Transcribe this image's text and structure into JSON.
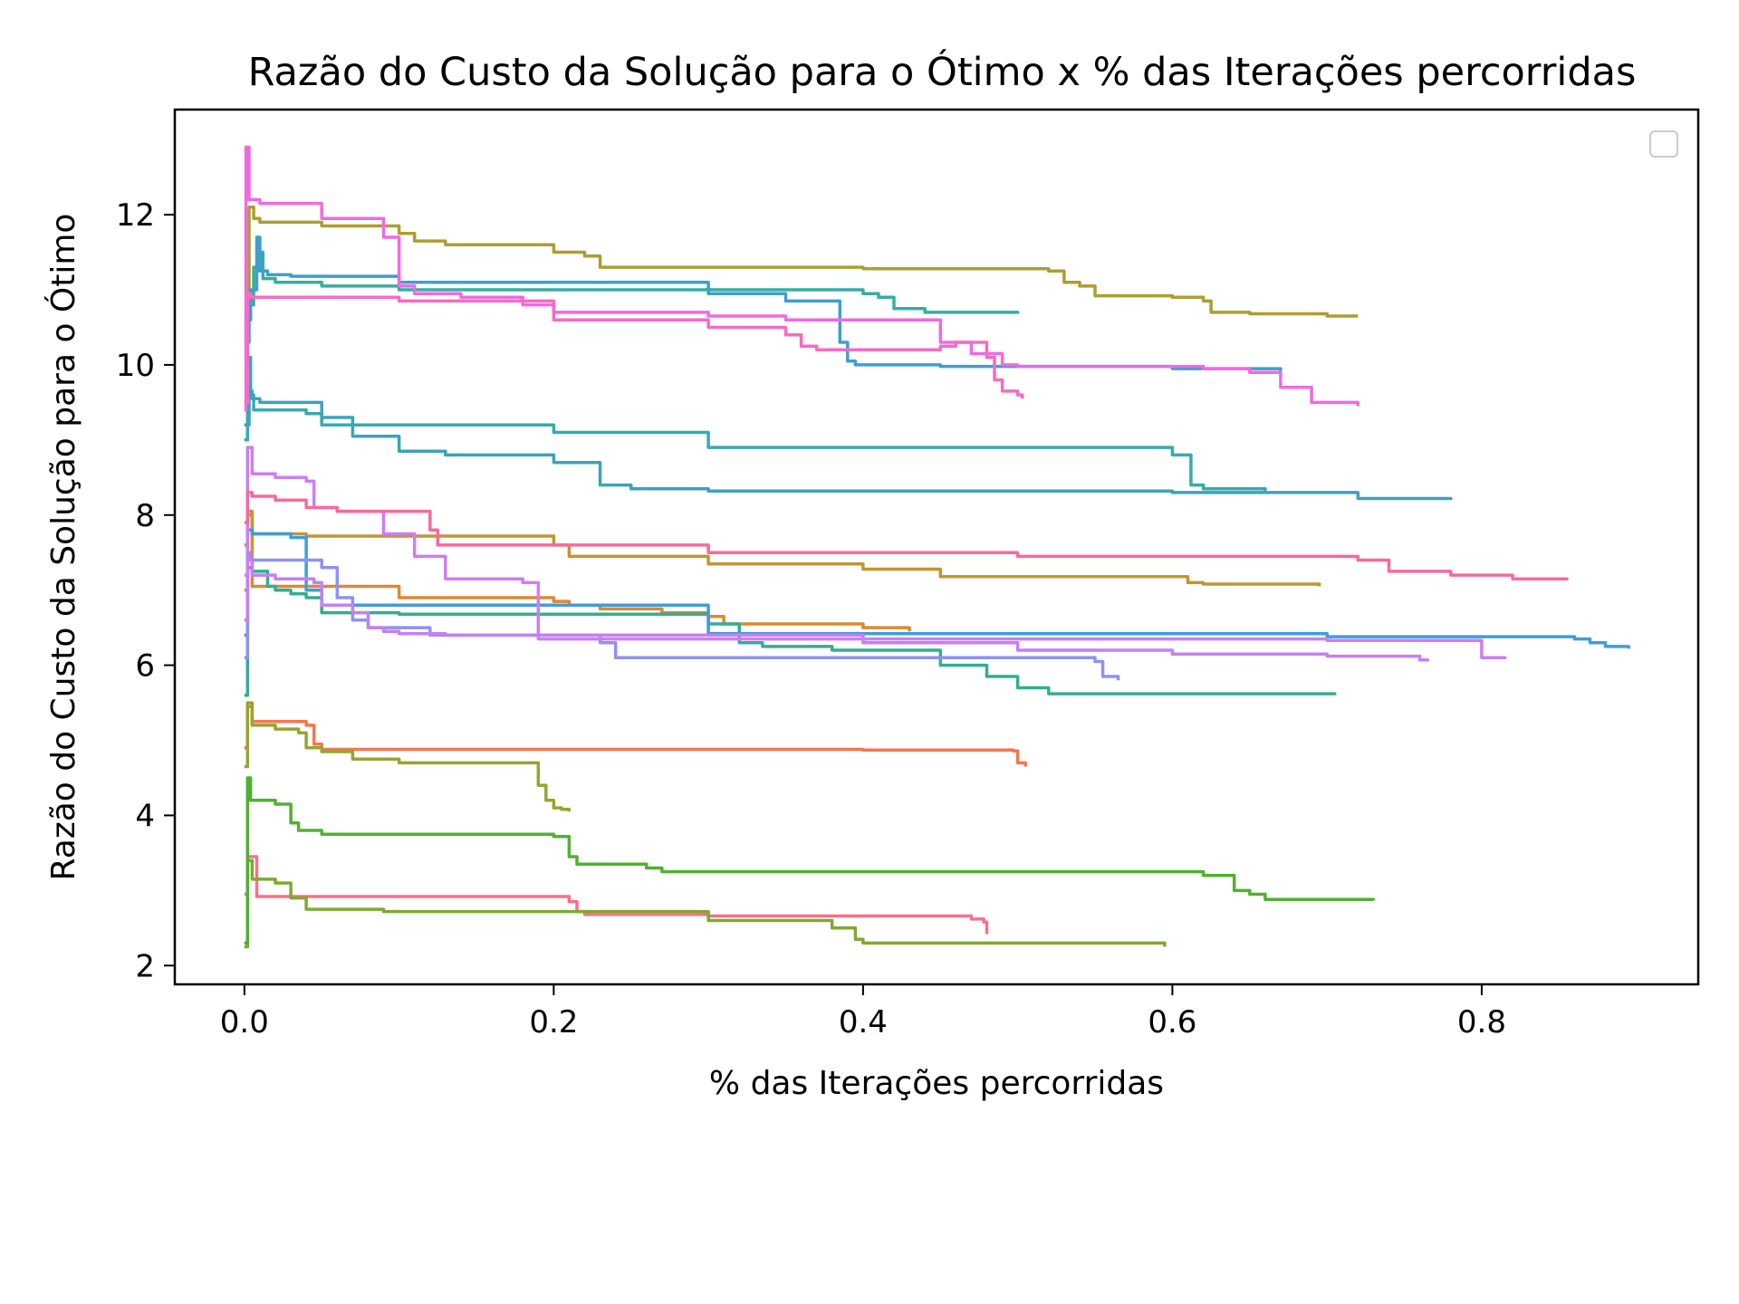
{
  "chart_data": {
    "type": "line",
    "title": "Razão do Custo da Solução para o Ótimo x % das Iterações percorridas",
    "xlabel": "% das Iterações percorridas",
    "ylabel": "Razão do Custo da Solução para o Ótimo",
    "xlim": [
      -0.045,
      0.94
    ],
    "ylim": [
      1.75,
      13.4
    ],
    "x_ticks": [
      0.0,
      0.2,
      0.4,
      0.6,
      0.8
    ],
    "x_tick_labels": [
      "0.0",
      "0.2",
      "0.4",
      "0.6",
      "0.8"
    ],
    "y_ticks": [
      2,
      4,
      6,
      8,
      10,
      12
    ],
    "y_tick_labels": [
      "2",
      "4",
      "6",
      "8",
      "10",
      "12"
    ],
    "grid": false,
    "legend": {
      "placement": "top-right",
      "entries": []
    },
    "series": [
      {
        "color": "#f77189",
        "x": [
          0,
          0.002,
          0.005,
          0.008,
          0.1,
          0.2,
          0.21,
          0.215,
          0.22,
          0.3,
          0.4,
          0.465,
          0.47,
          0.478,
          0.48
        ],
        "y": [
          2.95,
          3.45,
          3.45,
          2.92,
          2.92,
          2.92,
          2.85,
          2.72,
          2.68,
          2.66,
          2.66,
          2.66,
          2.62,
          2.58,
          2.42
        ]
      },
      {
        "color": "#f7754f",
        "x": [
          0,
          0.002,
          0.005,
          0.04,
          0.045,
          0.05,
          0.2,
          0.4,
          0.48,
          0.497,
          0.5,
          0.505
        ],
        "y": [
          4.9,
          5.45,
          5.25,
          5.2,
          4.95,
          4.88,
          4.88,
          4.87,
          4.87,
          4.86,
          4.7,
          4.65
        ]
      },
      {
        "color": "#dc8932",
        "x": [
          0,
          0.002,
          0.005,
          0.1,
          0.2,
          0.21,
          0.23,
          0.27,
          0.3,
          0.31,
          0.4,
          0.43
        ],
        "y": [
          7.0,
          8.05,
          7.05,
          6.9,
          6.85,
          6.8,
          6.75,
          6.7,
          6.65,
          6.55,
          6.5,
          6.45
        ]
      },
      {
        "color": "#c39532",
        "x": [
          0,
          0.002,
          0.005,
          0.04,
          0.1,
          0.2,
          0.21,
          0.3,
          0.4,
          0.44,
          0.45,
          0.6,
          0.61,
          0.62,
          0.69,
          0.695
        ],
        "y": [
          7.6,
          8.0,
          7.75,
          7.72,
          7.72,
          7.6,
          7.45,
          7.35,
          7.28,
          7.28,
          7.18,
          7.18,
          7.1,
          7.08,
          7.08,
          7.05
        ]
      },
      {
        "color": "#ae9d31",
        "x": [
          0,
          0.003,
          0.006,
          0.01,
          0.05,
          0.1,
          0.11,
          0.13,
          0.2,
          0.22,
          0.23,
          0.3,
          0.4,
          0.5,
          0.52,
          0.53,
          0.54,
          0.55,
          0.6,
          0.62,
          0.625,
          0.65,
          0.7,
          0.72
        ],
        "y": [
          10.6,
          12.1,
          11.95,
          11.9,
          11.85,
          11.75,
          11.65,
          11.6,
          11.5,
          11.45,
          11.3,
          11.3,
          11.28,
          11.28,
          11.25,
          11.1,
          11.05,
          10.92,
          10.9,
          10.85,
          10.7,
          10.68,
          10.65,
          10.65
        ]
      },
      {
        "color": "#97a431",
        "x": [
          0,
          0.002,
          0.005,
          0.02,
          0.035,
          0.04,
          0.05,
          0.07,
          0.1,
          0.19,
          0.195,
          0.2,
          0.205,
          0.21
        ],
        "y": [
          4.65,
          5.5,
          5.2,
          5.15,
          5.1,
          4.9,
          4.85,
          4.75,
          4.7,
          4.4,
          4.2,
          4.1,
          4.08,
          4.05
        ]
      },
      {
        "color": "#80a932",
        "x": [
          0,
          0.002,
          0.005,
          0.02,
          0.03,
          0.04,
          0.09,
          0.3,
          0.3,
          0.38,
          0.395,
          0.4,
          0.59,
          0.595
        ],
        "y": [
          2.25,
          3.4,
          3.15,
          3.1,
          2.9,
          2.75,
          2.72,
          2.65,
          2.6,
          2.5,
          2.35,
          2.3,
          2.3,
          2.25
        ]
      },
      {
        "color": "#50b131",
        "x": [
          0,
          0.002,
          0.004,
          0.02,
          0.03,
          0.035,
          0.05,
          0.2,
          0.21,
          0.215,
          0.22,
          0.26,
          0.27,
          0.6,
          0.62,
          0.64,
          0.65,
          0.66,
          0.73
        ],
        "y": [
          2.3,
          4.5,
          4.2,
          4.15,
          3.9,
          3.8,
          3.75,
          3.72,
          3.45,
          3.35,
          3.35,
          3.3,
          3.25,
          3.25,
          3.2,
          3.0,
          2.95,
          2.88,
          2.87
        ]
      },
      {
        "color": "#34ae91",
        "x": [
          0,
          0.002,
          0.005,
          0.01,
          0.015,
          0.02,
          0.03,
          0.04,
          0.05,
          0.1,
          0.3,
          0.32,
          0.335,
          0.38,
          0.45,
          0.47,
          0.48,
          0.5,
          0.52,
          0.7,
          0.705
        ],
        "y": [
          5.6,
          7.3,
          7.25,
          7.25,
          7.05,
          7.0,
          6.95,
          6.9,
          6.7,
          6.68,
          6.55,
          6.3,
          6.25,
          6.2,
          6.0,
          6.0,
          5.85,
          5.7,
          5.62,
          5.62,
          5.6
        ]
      },
      {
        "color": "#36ada4",
        "x": [
          0,
          0.003,
          0.006,
          0.01,
          0.012,
          0.02,
          0.05,
          0.1,
          0.3,
          0.4,
          0.41,
          0.42,
          0.44,
          0.49,
          0.5
        ],
        "y": [
          10.3,
          10.8,
          11.3,
          11.5,
          11.15,
          11.1,
          11.05,
          11.0,
          11.0,
          10.95,
          10.9,
          10.75,
          10.7,
          10.7,
          10.68
        ]
      },
      {
        "color": "#38aab0",
        "x": [
          0,
          0.002,
          0.004,
          0.006,
          0.04,
          0.05,
          0.2,
          0.3,
          0.6,
          0.61,
          0.612,
          0.62,
          0.66
        ],
        "y": [
          9.0,
          10.1,
          9.6,
          9.4,
          9.35,
          9.2,
          9.1,
          8.9,
          8.8,
          8.8,
          8.4,
          8.35,
          8.32
        ]
      },
      {
        "color": "#3ba3bc",
        "x": [
          0,
          0.003,
          0.005,
          0.01,
          0.02,
          0.05,
          0.07,
          0.1,
          0.13,
          0.2,
          0.23,
          0.25,
          0.3,
          0.5,
          0.6,
          0.7,
          0.72,
          0.78
        ],
        "y": [
          9.2,
          9.65,
          9.55,
          9.5,
          9.5,
          9.3,
          9.05,
          8.85,
          8.8,
          8.7,
          8.4,
          8.35,
          8.32,
          8.32,
          8.3,
          8.3,
          8.22,
          8.2
        ]
      },
      {
        "color": "#3da0cc",
        "x": [
          0,
          0.004,
          0.008,
          0.01,
          0.015,
          0.03,
          0.1,
          0.3,
          0.35,
          0.385,
          0.39,
          0.395,
          0.45,
          0.6,
          0.67
        ],
        "y": [
          10.6,
          11.0,
          11.7,
          11.25,
          11.2,
          11.18,
          11.1,
          10.95,
          10.85,
          10.3,
          10.05,
          10.0,
          9.98,
          9.95,
          9.92
        ]
      },
      {
        "color": "#3d9ddf",
        "x": [
          0,
          0.002,
          0.005,
          0.03,
          0.04,
          0.05,
          0.3,
          0.5,
          0.7,
          0.85,
          0.86,
          0.87,
          0.88,
          0.895
        ],
        "y": [
          6.4,
          7.8,
          7.75,
          7.7,
          7.0,
          6.8,
          6.42,
          6.42,
          6.38,
          6.38,
          6.35,
          6.3,
          6.25,
          6.22
        ]
      },
      {
        "color": "#8e92f1",
        "x": [
          0,
          0.002,
          0.004,
          0.05,
          0.06,
          0.07,
          0.08,
          0.12,
          0.23,
          0.24,
          0.3,
          0.55,
          0.555,
          0.565
        ],
        "y": [
          6.1,
          7.5,
          7.4,
          7.3,
          6.9,
          6.6,
          6.5,
          6.4,
          6.3,
          6.1,
          6.1,
          6.05,
          5.85,
          5.8
        ]
      },
      {
        "color": "#c57ff4",
        "x": [
          0,
          0.002,
          0.005,
          0.02,
          0.045,
          0.05,
          0.07,
          0.08,
          0.09,
          0.1,
          0.12,
          0.13,
          0.4,
          0.5,
          0.6,
          0.7,
          0.76,
          0.765
        ],
        "y": [
          6.6,
          7.4,
          7.2,
          7.15,
          7.1,
          6.8,
          6.7,
          6.5,
          6.45,
          6.42,
          6.42,
          6.4,
          6.3,
          6.2,
          6.15,
          6.12,
          6.07,
          6.05
        ]
      },
      {
        "color": "#cc7ef5",
        "x": [
          0,
          0.002,
          0.005,
          0.02,
          0.04,
          0.045,
          0.06,
          0.09,
          0.11,
          0.13,
          0.18,
          0.19,
          0.3,
          0.7,
          0.785,
          0.8,
          0.815
        ],
        "y": [
          7.2,
          8.9,
          8.55,
          8.5,
          8.45,
          8.1,
          8.05,
          7.75,
          7.45,
          7.15,
          7.1,
          6.35,
          6.35,
          6.33,
          6.33,
          6.1,
          6.08
        ]
      },
      {
        "color": "#f169e2",
        "x": [
          0,
          0.001,
          0.003,
          0.01,
          0.05,
          0.09,
          0.1,
          0.11,
          0.14,
          0.18,
          0.2,
          0.3,
          0.35,
          0.45,
          0.47,
          0.49,
          0.5,
          0.62,
          0.65,
          0.67,
          0.69,
          0.72
        ],
        "y": [
          9.4,
          12.9,
          12.2,
          12.15,
          11.95,
          11.7,
          11.05,
          10.95,
          10.9,
          10.8,
          10.7,
          10.65,
          10.6,
          10.3,
          10.15,
          10.0,
          9.98,
          9.95,
          9.9,
          9.7,
          9.5,
          9.45
        ]
      },
      {
        "color": "#f76ac5",
        "x": [
          0,
          0.002,
          0.004,
          0.1,
          0.2,
          0.3,
          0.35,
          0.36,
          0.37,
          0.38,
          0.39,
          0.4,
          0.45,
          0.46,
          0.47,
          0.48,
          0.485,
          0.49,
          0.5,
          0.503
        ],
        "y": [
          9.5,
          10.95,
          10.9,
          10.85,
          10.6,
          10.5,
          10.4,
          10.25,
          10.2,
          10.2,
          10.2,
          10.2,
          10.25,
          10.3,
          10.3,
          10.1,
          9.8,
          9.65,
          9.6,
          9.55
        ]
      },
      {
        "color": "#f7699e",
        "x": [
          0,
          0.002,
          0.005,
          0.02,
          0.04,
          0.06,
          0.09,
          0.12,
          0.125,
          0.13,
          0.3,
          0.5,
          0.72,
          0.74,
          0.78,
          0.82,
          0.855
        ],
        "y": [
          7.9,
          8.3,
          8.25,
          8.2,
          8.1,
          8.05,
          8.05,
          7.8,
          7.6,
          7.6,
          7.5,
          7.45,
          7.4,
          7.25,
          7.2,
          7.15,
          7.13
        ]
      }
    ]
  }
}
